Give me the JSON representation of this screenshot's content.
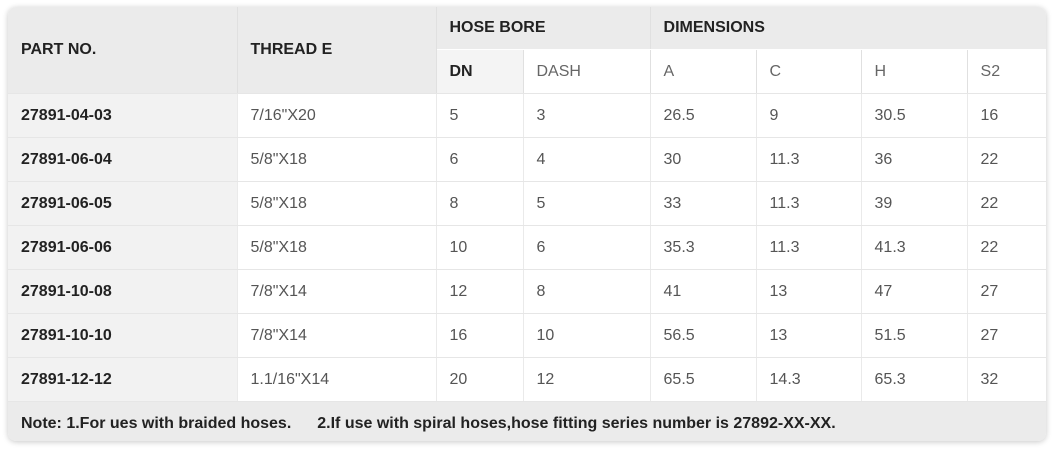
{
  "table": {
    "headers": {
      "part_no": "PART NO.",
      "thread": "THREAD E",
      "hose_bore": "HOSE BORE",
      "dimensions": "DIMENSIONS",
      "dn": "DN",
      "dash": "DASH",
      "a": "A",
      "c": "C",
      "h": "H",
      "s2": "S2"
    },
    "rows": [
      [
        "27891-04-03",
        "7/16\"X20",
        "5",
        "3",
        "26.5",
        "9",
        "30.5",
        "16"
      ],
      [
        "27891-06-04",
        "5/8\"X18",
        "6",
        "4",
        "30",
        "11.3",
        "36",
        "22"
      ],
      [
        "27891-06-05",
        "5/8\"X18",
        "8",
        "5",
        "33",
        "11.3",
        "39",
        "22"
      ],
      [
        "27891-06-06",
        "5/8\"X18",
        "10",
        "6",
        "35.3",
        "11.3",
        "41.3",
        "22"
      ],
      [
        "27891-10-08",
        "7/8\"X14",
        "12",
        "8",
        "41",
        "13",
        "47",
        "27"
      ],
      [
        "27891-10-10",
        "7/8\"X14",
        "16",
        "10",
        "56.5",
        "13",
        "51.5",
        "27"
      ],
      [
        "27891-12-12",
        "1.1/16\"X14",
        "20",
        "12",
        "65.5",
        "14.3",
        "65.3",
        "32"
      ]
    ]
  },
  "note": {
    "part1": "Note: 1.For ues with braided hoses.",
    "part2": "2.If use with spiral hoses,hose fitting series number is 27892-XX-XX."
  }
}
